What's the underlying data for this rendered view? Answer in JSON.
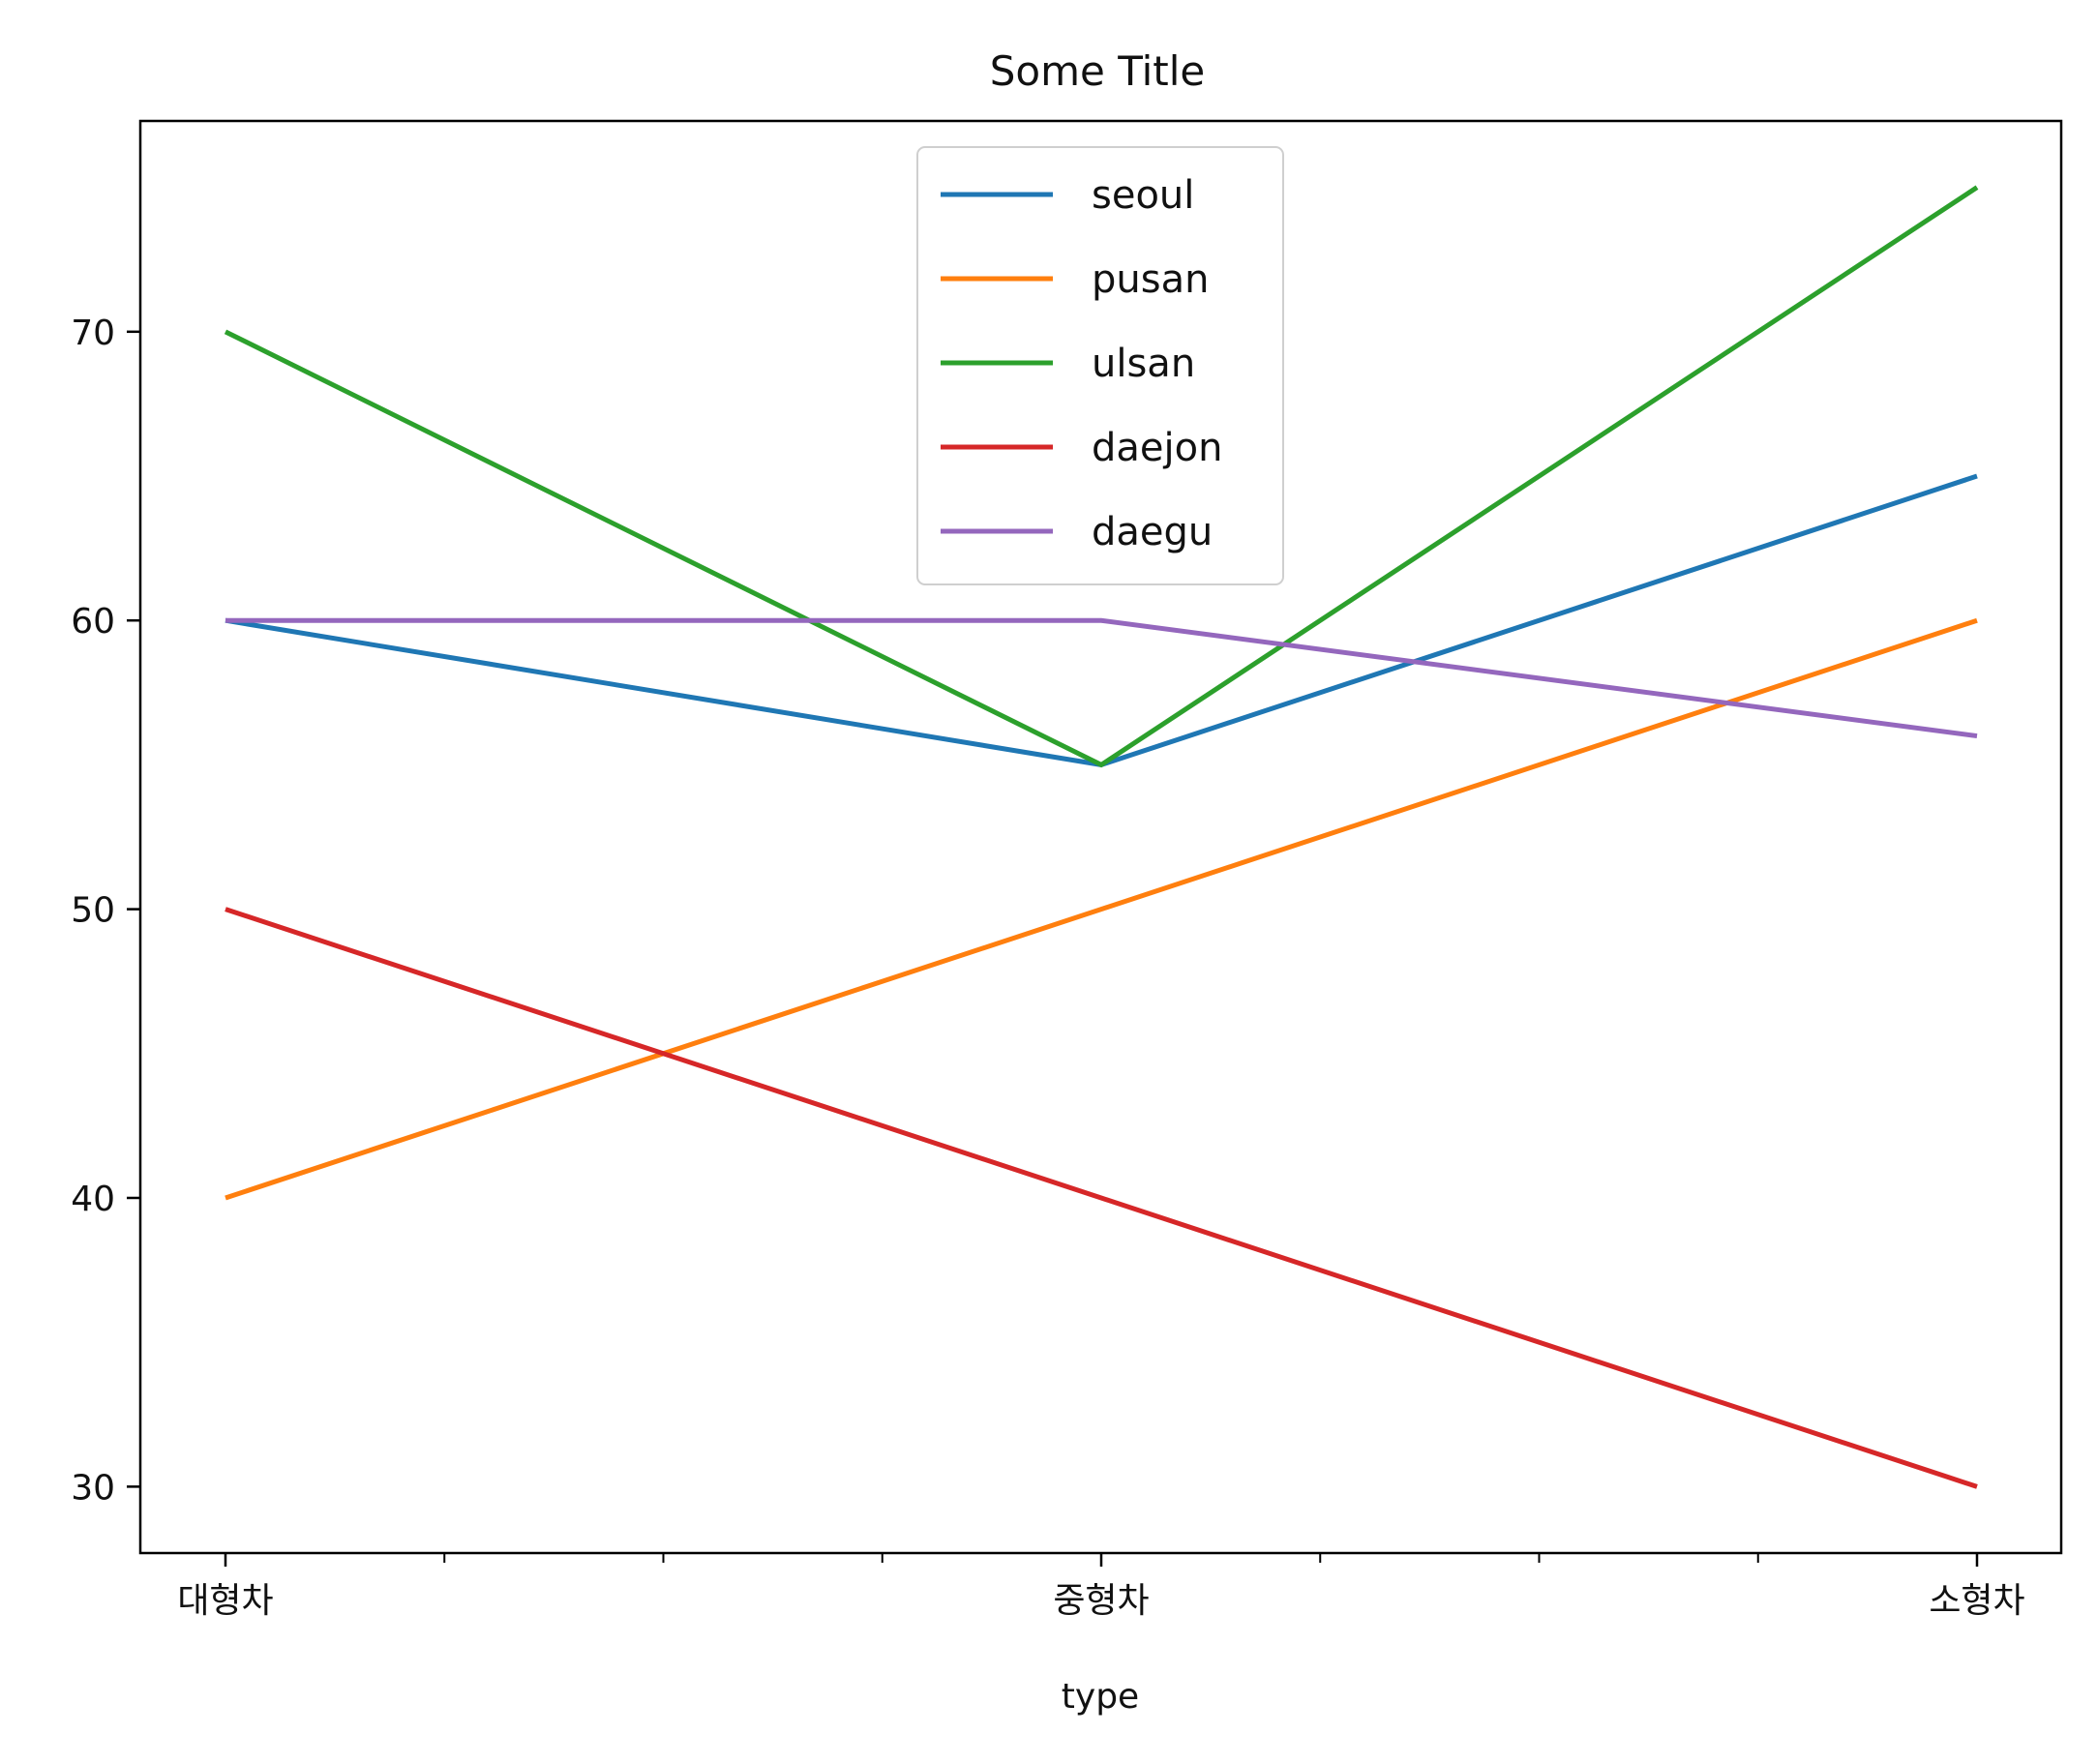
{
  "chart_data": {
    "type": "line",
    "title": "Some Title",
    "xlabel": "type",
    "ylabel": "",
    "categories": [
      "대형차",
      "중형차",
      "소형차"
    ],
    "ylim": [
      27.7,
      77.3
    ],
    "yticks": [
      30,
      40,
      50,
      60,
      70
    ],
    "legend_position": "top-center",
    "grid": false,
    "series": [
      {
        "name": "seoul",
        "color": "#1f77b4",
        "values": [
          60,
          55,
          65
        ]
      },
      {
        "name": "pusan",
        "color": "#ff7f0e",
        "values": [
          40,
          50,
          60
        ]
      },
      {
        "name": "ulsan",
        "color": "#2ca02c",
        "values": [
          70,
          55,
          75
        ]
      },
      {
        "name": "daejon",
        "color": "#d62728",
        "values": [
          50,
          40,
          30
        ]
      },
      {
        "name": "daegu",
        "color": "#9467bd",
        "values": [
          60,
          60,
          56
        ]
      }
    ]
  }
}
